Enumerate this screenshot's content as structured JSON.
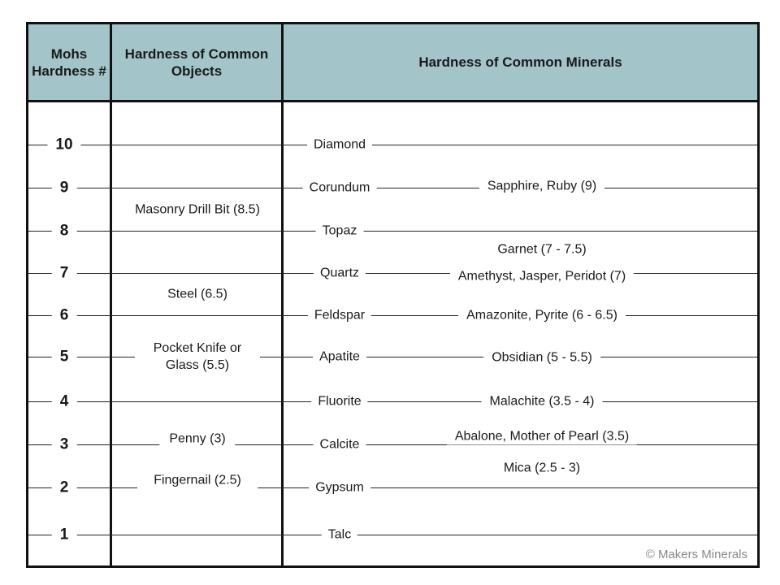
{
  "header": {
    "col1": "Mohs Hardness #",
    "col2": "Hardness of Common Objects",
    "col3": "Hardness of Common Minerals",
    "header_color": "#a3c5c9"
  },
  "rows": [
    {
      "num": "10",
      "mineral": "Diamond"
    },
    {
      "num": "9",
      "mineral": "Corundum"
    },
    {
      "num": "8",
      "mineral": "Topaz"
    },
    {
      "num": "7",
      "mineral": "Quartz"
    },
    {
      "num": "6",
      "mineral": "Feldspar"
    },
    {
      "num": "5",
      "mineral": "Apatite"
    },
    {
      "num": "4",
      "mineral": "Fluorite"
    },
    {
      "num": "3",
      "mineral": "Calcite"
    },
    {
      "num": "2",
      "mineral": "Gypsum"
    },
    {
      "num": "1",
      "mineral": "Talc"
    }
  ],
  "objects": [
    "Masonry Drill Bit (8.5)",
    "Steel (6.5)",
    "Pocket Knife or Glass (5.5)",
    "Penny (3)",
    "Fingernail (2.5)"
  ],
  "other_minerals": [
    "Sapphire, Ruby (9)",
    "Garnet (7 - 7.5)",
    "Amethyst, Jasper, Peridot (7)",
    "Amazonite, Pyrite (6 - 6.5)",
    "Obsidian (5 - 5.5)",
    "Malachite (3.5 - 4)",
    "Abalone, Mother of Pearl (3.5)",
    "Mica (2.5 - 3)"
  ],
  "watermark": "MAKER'S MINERALS",
  "copyright": "© Makers Minerals"
}
